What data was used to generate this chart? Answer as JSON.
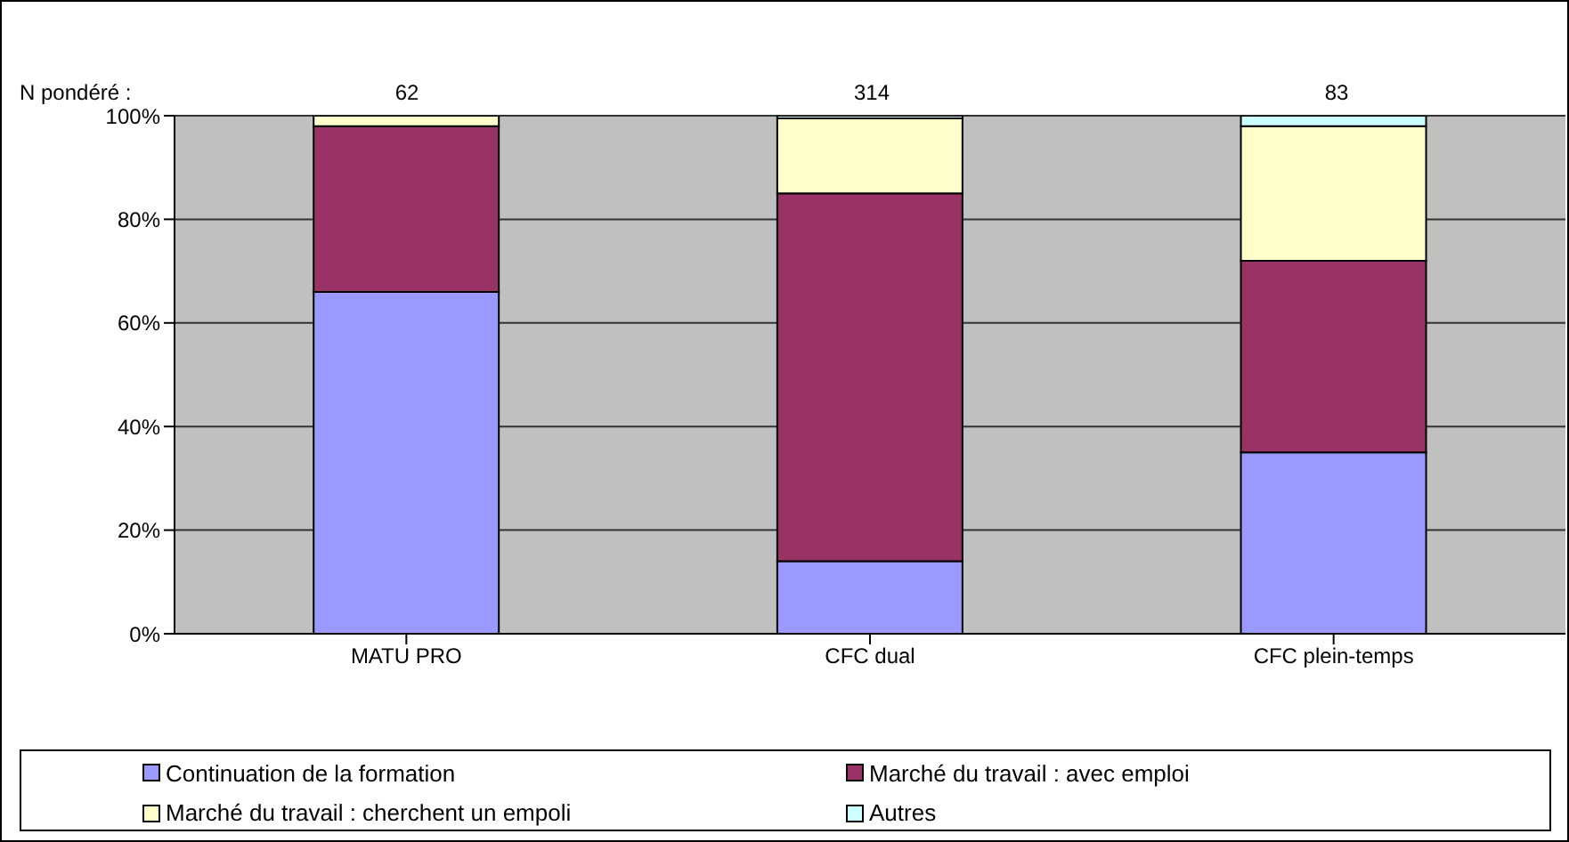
{
  "chart_data": {
    "type": "bar",
    "stacked": true,
    "categories": [
      "MATU PRO",
      "CFC dual",
      "CFC plein-temps"
    ],
    "series": [
      {
        "name": "Continuation de la formation",
        "color": "#9999ff",
        "values": [
          66,
          14,
          35
        ]
      },
      {
        "name": "Marché du travail : avec emploi",
        "color": "#993366",
        "values": [
          32,
          71,
          37
        ]
      },
      {
        "name": "Marché du travail : cherchent un empoli",
        "color": "#ffffcc",
        "values": [
          2,
          14.5,
          26
        ]
      },
      {
        "name": "Autres",
        "color": "#ccffff",
        "values": [
          0,
          0.5,
          2
        ]
      }
    ],
    "ylim": [
      0,
      100
    ],
    "yticks": [
      {
        "value": 0,
        "label": "0%"
      },
      {
        "value": 20,
        "label": "20%"
      },
      {
        "value": 40,
        "label": "40%"
      },
      {
        "value": 60,
        "label": "60%"
      },
      {
        "value": 80,
        "label": "80%"
      },
      {
        "value": 100,
        "label": "100%"
      }
    ],
    "grid": "y",
    "legend": "bottom",
    "annotations": [
      "N pondéré :",
      "62",
      "314",
      "83"
    ]
  }
}
